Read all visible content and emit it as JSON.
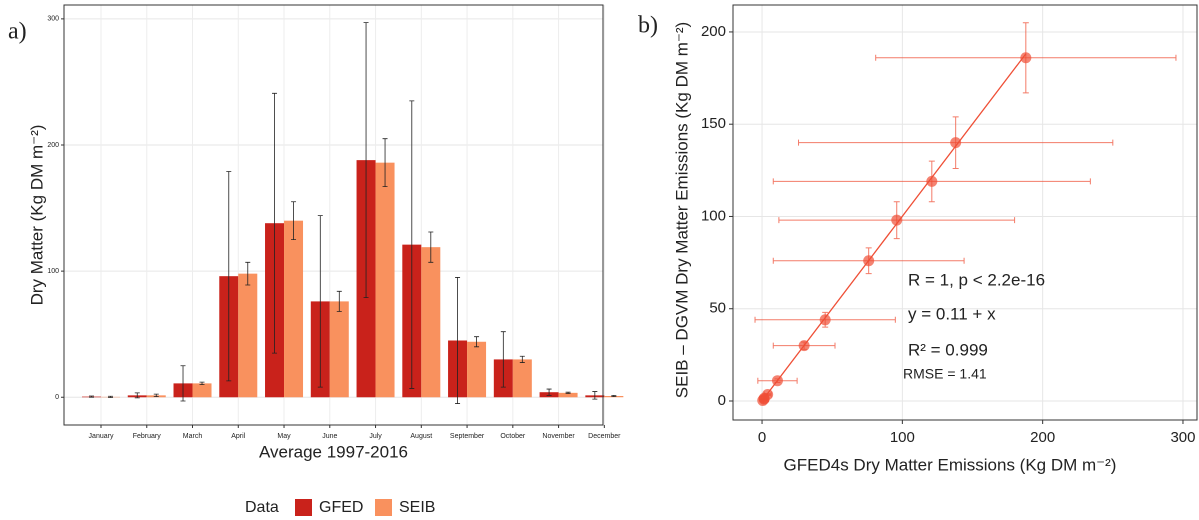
{
  "chart_data": [
    {
      "type": "bar",
      "panel_label": "a)",
      "xlabel": "Average 1997-2016",
      "ylabel": "Dry Matter (Kg DM m⁻²)",
      "categories": [
        "January",
        "February",
        "March",
        "April",
        "May",
        "June",
        "July",
        "August",
        "September",
        "October",
        "November",
        "December"
      ],
      "series": [
        {
          "name": "GFED",
          "color": "#c9221b",
          "values": [
            0.5,
            1.5,
            11,
            96,
            138,
            76,
            188,
            121,
            45,
            30,
            4,
            1.5
          ],
          "errors": [
            0.5,
            2,
            14,
            83,
            103,
            68,
            109,
            114,
            50,
            22,
            2.5,
            3
          ]
        },
        {
          "name": "SEIB",
          "color": "#f9915e",
          "values": [
            0.3,
            1.5,
            11,
            98,
            140,
            76,
            186,
            119,
            44,
            30,
            3.5,
            1
          ],
          "errors": [
            0.5,
            1,
            1,
            9,
            15,
            8,
            19,
            12,
            4,
            2.5,
            0.5,
            0.5
          ]
        }
      ],
      "ylim": [
        -22,
        311
      ],
      "yticks": [
        0,
        100,
        200,
        300
      ],
      "grid": true,
      "legend_title": "Data",
      "legend_position": "bottom"
    },
    {
      "type": "scatter",
      "panel_label": "b)",
      "xlabel": "GFED4s Dry Matter Emissions (Kg  DM m⁻²)",
      "ylabel": "SEIB – DGVM Dry Matter Emissions (Kg  DM m⁻²)",
      "color": "#ef4f36",
      "x": [
        0.5,
        1.5,
        11,
        96,
        138,
        76,
        188,
        121,
        45,
        30,
        4,
        1.5
      ],
      "x_errors": [
        0.5,
        2,
        14,
        84,
        112,
        68,
        107,
        113,
        50,
        22,
        2.5,
        3
      ],
      "values": [
        0.3,
        1.5,
        11,
        98,
        140,
        76,
        186,
        119,
        44,
        30,
        3.5,
        1
      ],
      "errors": [
        0.5,
        1,
        1,
        10,
        14,
        7,
        19,
        11,
        4,
        2,
        0.5,
        0.5
      ],
      "fit": {
        "intercept": 0.11,
        "slope": 1
      },
      "annotations": [
        "R = 1, p < 2.2e-16",
        "y = 0.11 + x",
        "R² = 0.999",
        "RMSE = 1.41"
      ],
      "xlim": [
        -20.7,
        310
      ],
      "xticks": [
        0,
        100,
        200,
        300
      ],
      "ylim": [
        -10.3,
        214.6
      ],
      "yticks": [
        0,
        50,
        100,
        150,
        200
      ],
      "grid": true
    }
  ]
}
